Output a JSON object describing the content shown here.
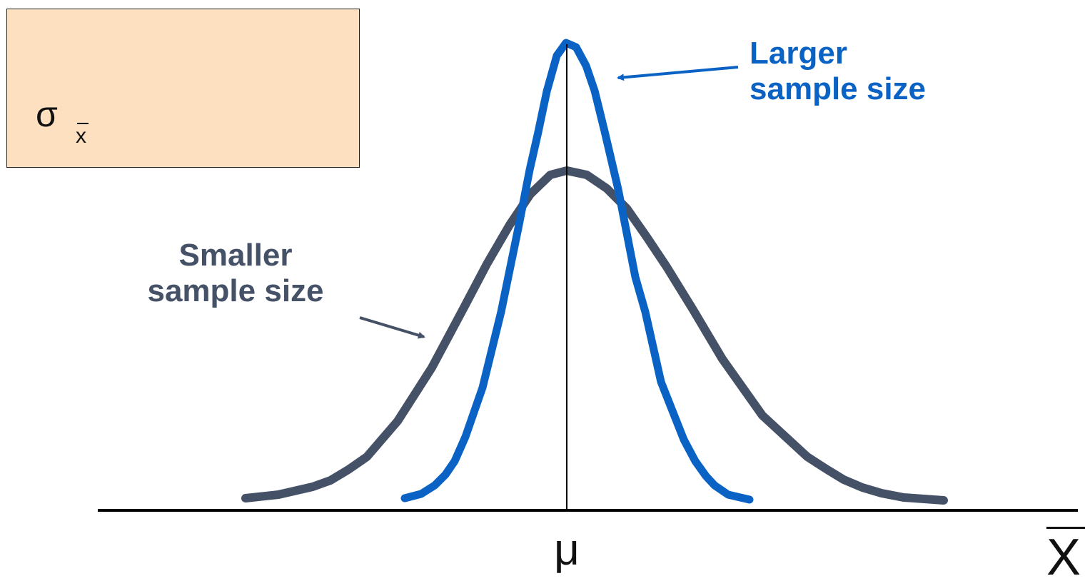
{
  "box": {
    "symbol": "σ",
    "subscript": "x",
    "fill_color": "#fce0bf"
  },
  "labels": {
    "larger": [
      "Larger",
      "sample size"
    ],
    "smaller": [
      "Smaller",
      "sample size"
    ]
  },
  "axis": {
    "center_label": "μ",
    "variable_label": "X"
  },
  "curves": {
    "larger_color": "#0a63c4",
    "smaller_color": "#455166"
  }
}
